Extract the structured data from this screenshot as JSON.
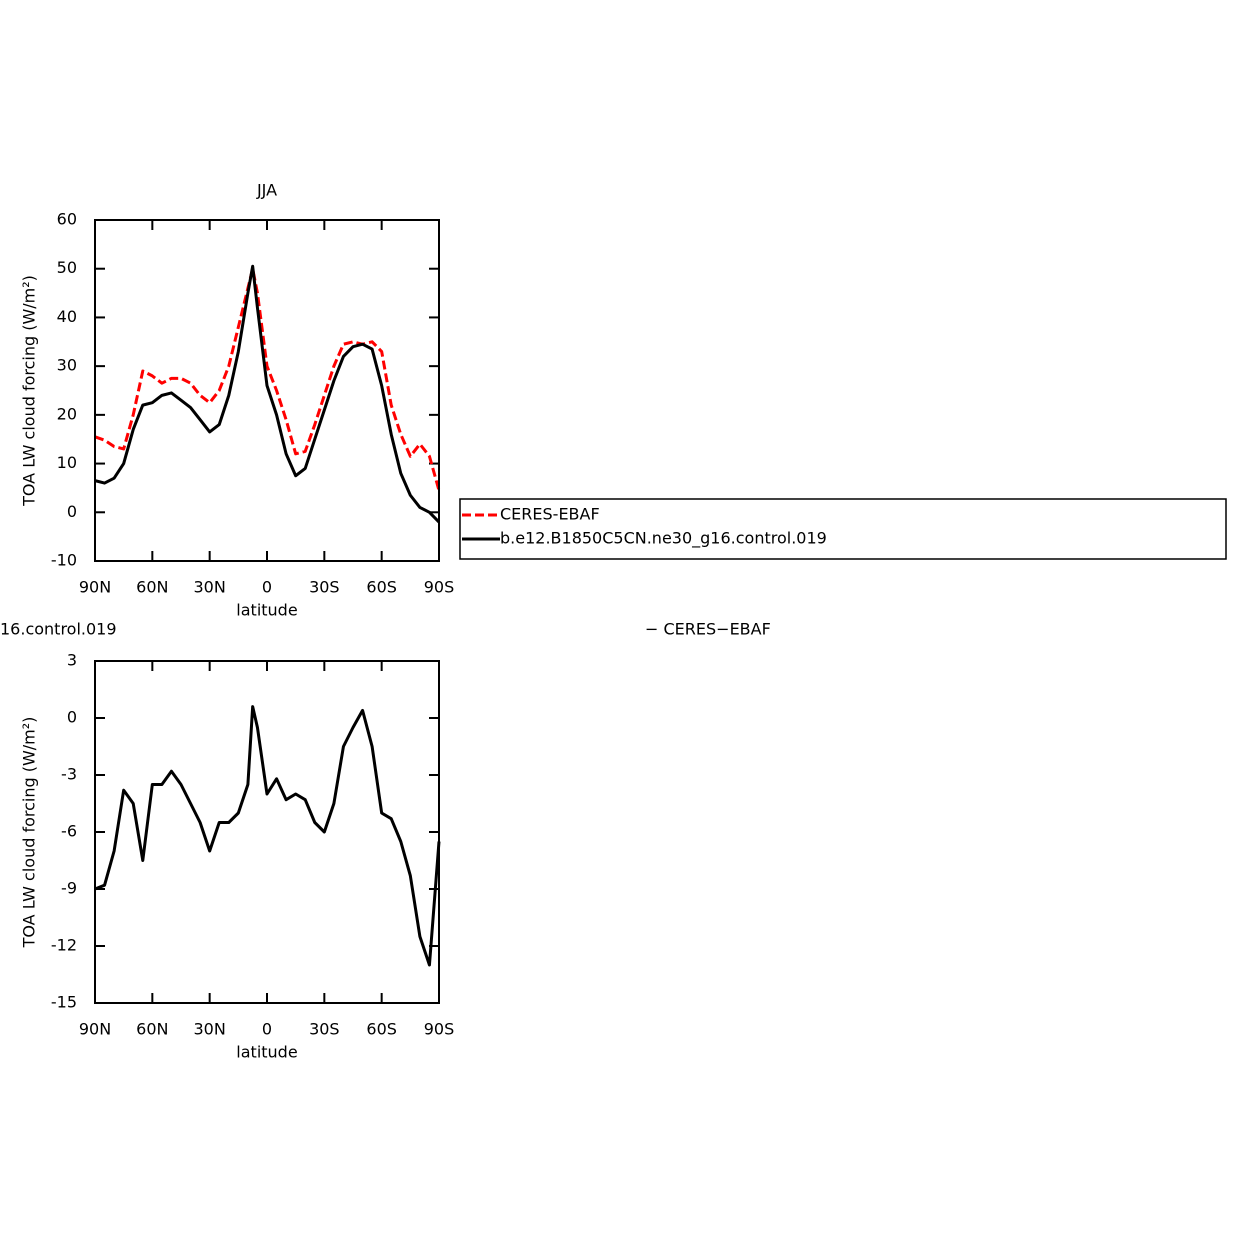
{
  "chart_data": [
    {
      "type": "line",
      "title": "JJA",
      "xlabel": "latitude",
      "ylabel": "TOA LW cloud forcing (W/m²)",
      "x": [
        90,
        85,
        80,
        75,
        70,
        65,
        60,
        55,
        50,
        45,
        40,
        35,
        30,
        25,
        20,
        15,
        10,
        7.5,
        5,
        0,
        -5,
        -10,
        -15,
        -20,
        -25,
        -30,
        -35,
        -40,
        -45,
        -50,
        -55,
        -60,
        -65,
        -70,
        -75,
        -80,
        -85,
        -90
      ],
      "series": [
        {
          "name": "CERES-EBAF",
          "color": "#ff0000",
          "style": "dashed",
          "values": [
            15.5,
            14.8,
            13.5,
            13,
            20,
            29,
            28,
            26.5,
            27.5,
            27.5,
            26.5,
            24,
            22.5,
            25,
            30,
            38,
            46,
            50,
            45,
            30,
            25,
            19,
            12,
            12.5,
            18,
            24,
            30,
            34.5,
            35,
            34.5,
            35,
            33,
            22,
            16,
            11.5,
            14,
            11.5,
            4.5
          ]
        },
        {
          "name": "b.e12.B1850C5CN.ne30_g16.control.019",
          "color": "#000000",
          "style": "solid",
          "values": [
            6.5,
            6,
            7,
            10,
            17,
            22,
            22.5,
            24,
            24.5,
            23,
            21.5,
            19,
            16.5,
            18,
            24,
            33,
            45,
            50.5,
            42,
            26,
            20,
            12,
            7.5,
            9,
            15,
            21,
            27,
            32,
            34,
            34.5,
            33.5,
            26,
            16,
            8,
            3.5,
            1,
            0,
            -2
          ]
        }
      ],
      "xlim": [
        90,
        -90
      ],
      "xticks": [
        {
          "value": 90,
          "label": "90N"
        },
        {
          "value": 60,
          "label": "60N"
        },
        {
          "value": 30,
          "label": "30N"
        },
        0,
        {
          "value": -30,
          "label": "30S"
        },
        {
          "value": -60,
          "label": "60S"
        },
        {
          "value": -90,
          "label": "90S"
        }
      ],
      "ylim": [
        -10,
        60
      ],
      "yticks": [
        -10,
        0,
        10,
        20,
        30,
        40,
        50,
        60
      ],
      "legend": "right"
    },
    {
      "type": "line",
      "title_left": "16.control.019",
      "title_right": "− CERES−EBAF",
      "xlabel": "latitude",
      "ylabel": "TOA LW cloud forcing (W/m²)",
      "x": [
        90,
        85,
        80,
        75,
        70,
        65,
        60,
        55,
        50,
        45,
        40,
        35,
        30,
        25,
        20,
        15,
        10,
        7.5,
        5,
        0,
        -5,
        -10,
        -15,
        -20,
        -25,
        -30,
        -35,
        -40,
        -45,
        -50,
        -55,
        -60,
        -65,
        -70,
        -75,
        -80,
        -85,
        -90
      ],
      "series": [
        {
          "color": "#000000",
          "style": "solid",
          "values": [
            -9,
            -8.8,
            -7,
            -3.8,
            -4.5,
            -7.5,
            -3.5,
            -3.5,
            -2.8,
            -3.5,
            -4.5,
            -5.5,
            -7,
            -5.5,
            -5.5,
            -5,
            -3.5,
            0.6,
            -0.5,
            -4,
            -3.2,
            -4.3,
            -4,
            -4.3,
            -5.5,
            -6,
            -4.5,
            -1.5,
            -0.5,
            0.4,
            -1.5,
            -5,
            -5.3,
            -6.5,
            -8.3,
            -11.5,
            -13,
            -6.5
          ]
        }
      ],
      "xlim": [
        90,
        -90
      ],
      "xticks": [
        {
          "value": 90,
          "label": "90N"
        },
        {
          "value": 60,
          "label": "60N"
        },
        {
          "value": 30,
          "label": "30N"
        },
        0,
        {
          "value": -30,
          "label": "30S"
        },
        {
          "value": -60,
          "label": "60S"
        },
        {
          "value": -90,
          "label": "90S"
        }
      ],
      "ylim": [
        -15,
        3
      ],
      "yticks": [
        -15,
        -12,
        -9,
        -6,
        -3,
        0,
        3
      ]
    }
  ]
}
